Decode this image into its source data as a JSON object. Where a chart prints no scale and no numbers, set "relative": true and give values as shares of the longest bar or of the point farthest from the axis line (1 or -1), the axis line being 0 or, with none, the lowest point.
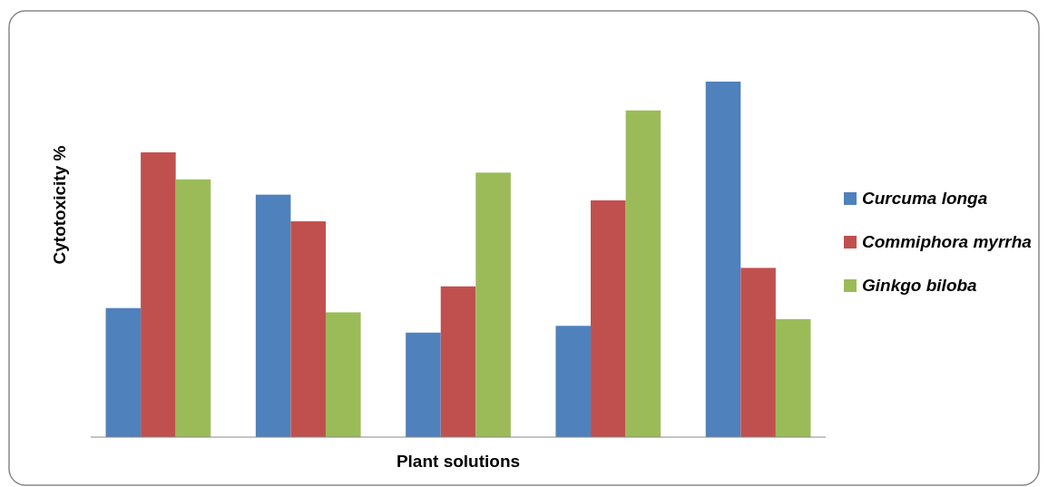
{
  "chart_data": {
    "type": "bar",
    "xlabel": "Plant solutions",
    "ylabel": "Cytotoxicity %",
    "categories": [
      null,
      null,
      null,
      null,
      null
    ],
    "relative": true,
    "legend": "right",
    "series": [
      {
        "name": "Curcuma longa",
        "color": "#4f81bd",
        "values": [
          0.363,
          0.682,
          0.294,
          0.313,
          1
        ]
      },
      {
        "name": "Commiphora myrrha",
        "color": "#c0504d",
        "values": [
          0.801,
          0.607,
          0.424,
          0.666,
          0.476
        ]
      },
      {
        "name": "Ginkgo biloba",
        "color": "#9bbb59",
        "values": [
          0.725,
          0.351,
          0.744,
          0.919,
          0.332
        ]
      }
    ]
  }
}
